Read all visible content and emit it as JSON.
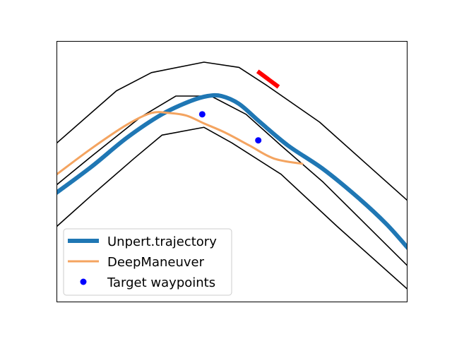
{
  "chart_data": {
    "type": "line",
    "title": "",
    "xlabel": "",
    "ylabel": "",
    "xlim": [
      0,
      100
    ],
    "ylim": [
      0,
      100
    ],
    "axis_ticks": "none",
    "grid": false,
    "legend_position": "lower-left",
    "road_edges": [
      {
        "color": "#000000",
        "x": [
          0,
          17,
          27,
          42,
          52,
          60,
          75,
          90,
          100
        ],
        "y": [
          61,
          81,
          88,
          92,
          90,
          83,
          69,
          51,
          39
        ]
      },
      {
        "color": "#000000",
        "x": [
          0,
          10,
          24,
          34,
          44,
          54,
          64,
          76,
          88,
          100
        ],
        "y": [
          45,
          56,
          71,
          79,
          79,
          72,
          60,
          46,
          30,
          14
        ]
      },
      {
        "color": "#000000",
        "x": [
          0,
          10,
          22,
          30,
          42,
          50,
          64,
          80,
          100
        ],
        "y": [
          29,
          41,
          55,
          64,
          67,
          61,
          49,
          29,
          5
        ]
      }
    ],
    "series": [
      {
        "name": "Unpert.trajectory",
        "color": "#1f77b4",
        "style": "thick-line",
        "x": [
          0,
          10,
          20,
          30,
          38,
          43,
          47,
          52,
          58,
          66,
          76,
          86,
          94,
          100
        ],
        "y": [
          42,
          52,
          63,
          72,
          77,
          79,
          79,
          76,
          69,
          60,
          51,
          40,
          30,
          21
        ]
      },
      {
        "name": "DeepManeuver",
        "color": "#f4a460",
        "style": "line",
        "x": [
          0,
          10,
          20,
          27,
          32,
          37,
          42,
          48,
          55,
          62,
          70
        ],
        "y": [
          49,
          59,
          68,
          72.5,
          72.5,
          71.5,
          68.5,
          65,
          60,
          55,
          53
        ]
      },
      {
        "name": "Target waypoints",
        "color": "#0000ff",
        "style": "markers",
        "x": [
          41.5,
          57.5
        ],
        "y": [
          72,
          62
        ]
      }
    ],
    "highlight_segment": {
      "color": "#ff0000",
      "x": [
        57.3,
        63.3
      ],
      "y": [
        88.5,
        82.5
      ]
    }
  }
}
